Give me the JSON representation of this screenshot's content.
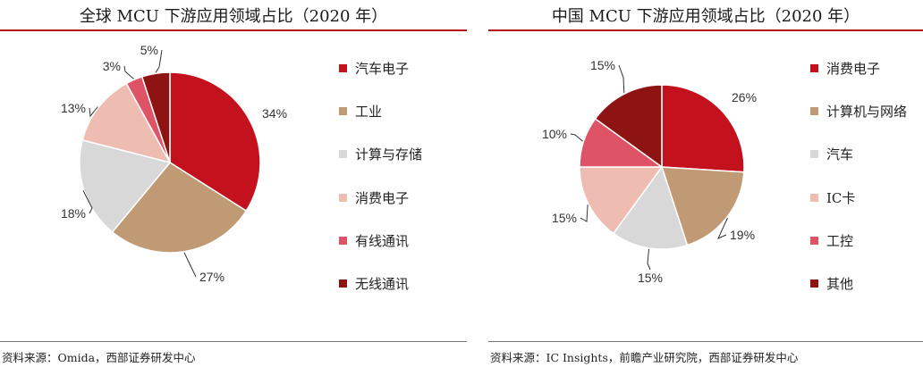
{
  "charts": [
    {
      "id": "left",
      "title": "全球 MCU 下游应用领域占比（2020 年）",
      "source": "资料来源：Omida，西部证券研发中心"
    },
    {
      "id": "right",
      "title": "中国 MCU 下游应用领域占比（2020 年）",
      "source": "资料来源：IC Insights，前瞻产业研究院，西部证券研发中心"
    }
  ],
  "chart_data": [
    {
      "type": "pie",
      "title": "全球 MCU 下游应用领域占比（2020 年）",
      "legend_position": "right",
      "slices": [
        {
          "label": "汽车电子",
          "value": 34,
          "text": "34%",
          "color": "#c3121d"
        },
        {
          "label": "工业",
          "value": 27,
          "text": "27%",
          "color": "#bf9a74"
        },
        {
          "label": "计算与存储",
          "value": 18,
          "text": "18%",
          "color": "#d8d8d8"
        },
        {
          "label": "消费电子",
          "value": 13,
          "text": "13%",
          "color": "#efbcb1"
        },
        {
          "label": "有线通讯",
          "value": 3,
          "text": "3%",
          "color": "#de5366"
        },
        {
          "label": "无线通讯",
          "value": 5,
          "text": "5%",
          "color": "#8e1414"
        }
      ]
    },
    {
      "type": "pie",
      "title": "中国 MCU 下游应用领域占比（2020 年）",
      "legend_position": "right",
      "slices": [
        {
          "label": "消费电子",
          "value": 26,
          "text": "26%",
          "color": "#c3121d"
        },
        {
          "label": "计算机与网络",
          "value": 19,
          "text": "19%",
          "color": "#bf9a74"
        },
        {
          "label": "汽车",
          "value": 15,
          "text": "15%",
          "color": "#d8d8d8"
        },
        {
          "label": "IC卡",
          "value": 15,
          "text": "15%",
          "color": "#efbcb1"
        },
        {
          "label": "工控",
          "value": 10,
          "text": "10%",
          "color": "#de5366"
        },
        {
          "label": "其他",
          "value": 15,
          "text": "15%",
          "color": "#8e1414"
        }
      ]
    }
  ]
}
